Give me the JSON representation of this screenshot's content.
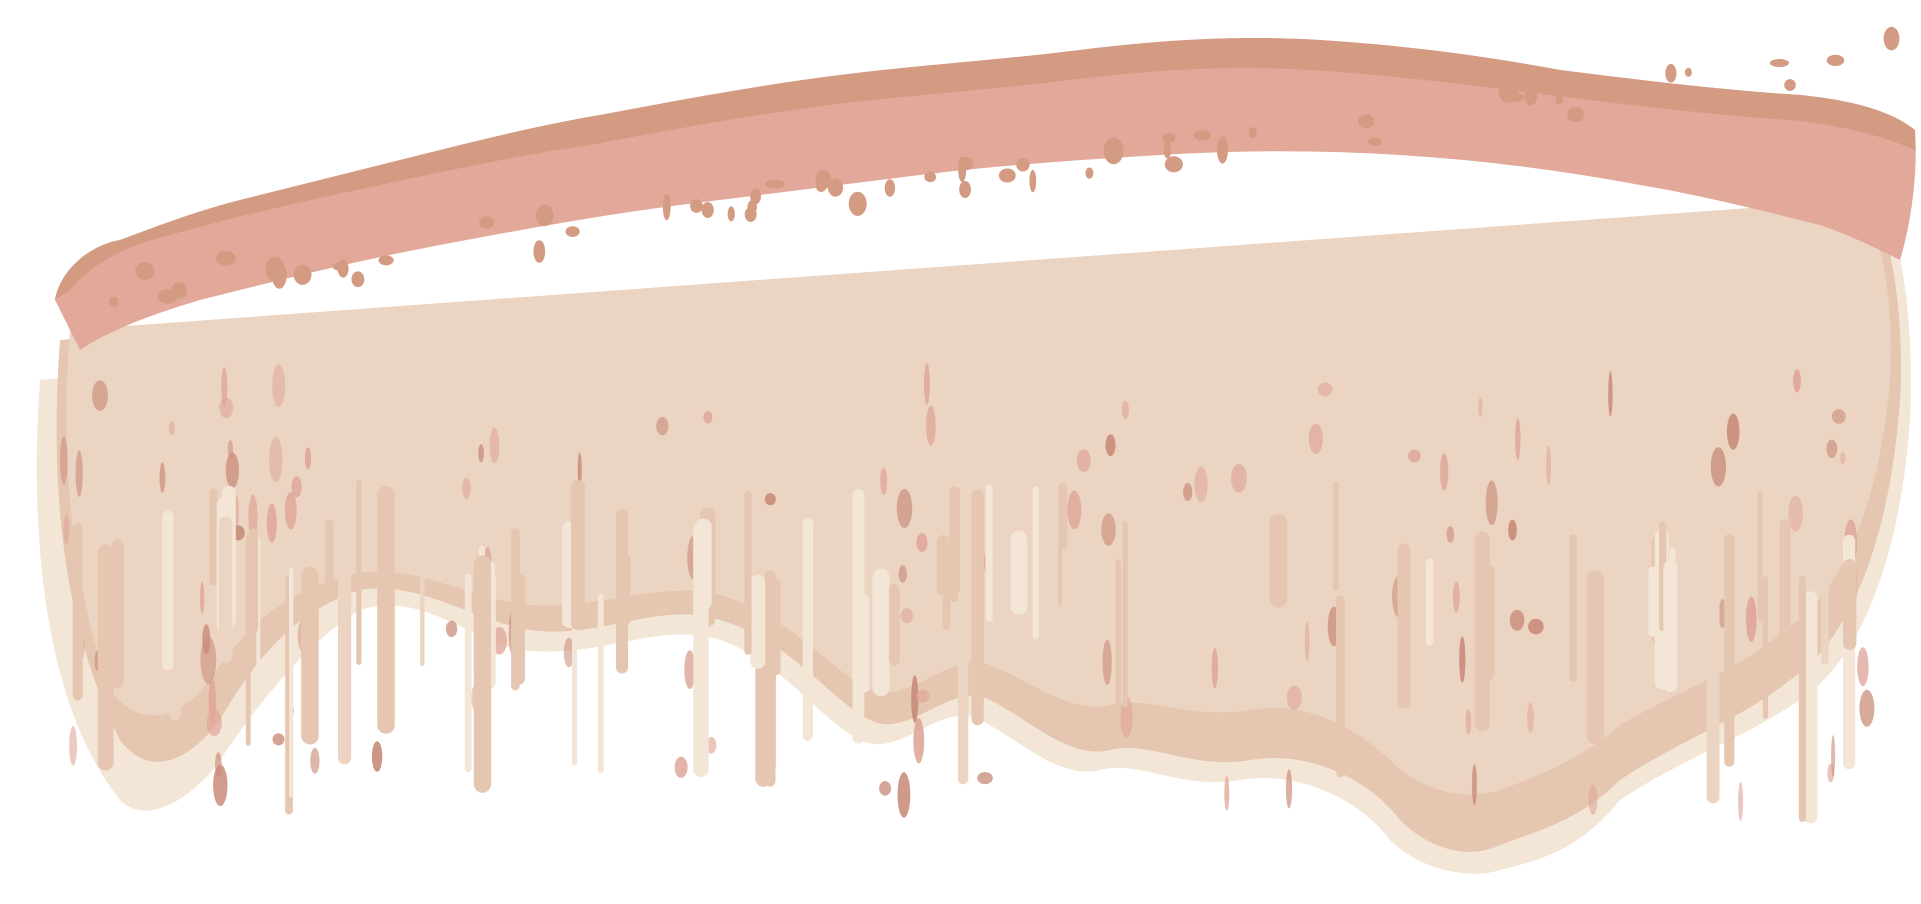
{
  "artwork": {
    "colors": {
      "background": "#ffffff",
      "stroke_top_dark": "#d49b83",
      "stroke_top": "#e2a89a",
      "body_main": "#ecd4c2",
      "body_mid": "#e5c6b1",
      "body_light": "#f3e6d6",
      "speckle_dark": "#c98c7a",
      "speckle_pink": "#dfa79a"
    }
  }
}
